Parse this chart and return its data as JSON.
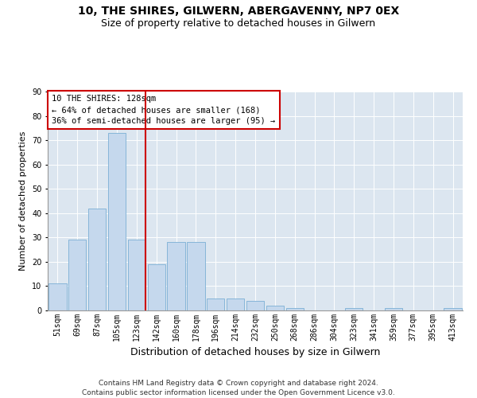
{
  "title": "10, THE SHIRES, GILWERN, ABERGAVENNY, NP7 0EX",
  "subtitle": "Size of property relative to detached houses in Gilwern",
  "xlabel": "Distribution of detached houses by size in Gilwern",
  "ylabel": "Number of detached properties",
  "categories": [
    "51sqm",
    "69sqm",
    "87sqm",
    "105sqm",
    "123sqm",
    "142sqm",
    "160sqm",
    "178sqm",
    "196sqm",
    "214sqm",
    "232sqm",
    "250sqm",
    "268sqm",
    "286sqm",
    "304sqm",
    "323sqm",
    "341sqm",
    "359sqm",
    "377sqm",
    "395sqm",
    "413sqm"
  ],
  "values": [
    11,
    29,
    42,
    73,
    29,
    19,
    28,
    28,
    5,
    5,
    4,
    2,
    1,
    0,
    0,
    1,
    0,
    1,
    0,
    0,
    1
  ],
  "bar_color": "#c5d8ed",
  "bar_edge_color": "#7aafd4",
  "vline_color": "#cc0000",
  "vline_x_index": 4,
  "annotation_text": "10 THE SHIRES: 128sqm\n← 64% of detached houses are smaller (168)\n36% of semi-detached houses are larger (95) →",
  "annotation_box_color": "#ffffff",
  "annotation_box_edge": "#cc0000",
  "ylim": [
    0,
    90
  ],
  "yticks": [
    0,
    10,
    20,
    30,
    40,
    50,
    60,
    70,
    80,
    90
  ],
  "background_color": "#dce6f0",
  "footer": "Contains HM Land Registry data © Crown copyright and database right 2024.\nContains public sector information licensed under the Open Government Licence v3.0.",
  "title_fontsize": 10,
  "subtitle_fontsize": 9,
  "xlabel_fontsize": 9,
  "ylabel_fontsize": 8,
  "tick_fontsize": 7,
  "annotation_fontsize": 7.5,
  "footer_fontsize": 6.5
}
